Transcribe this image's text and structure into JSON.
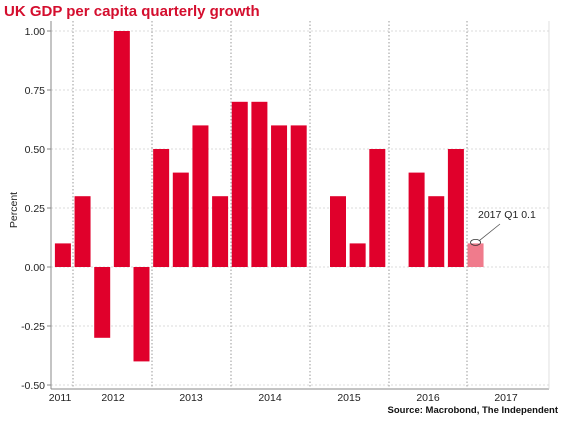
{
  "chart_data": {
    "type": "bar",
    "title": "UK GDP per capita quarterly growth",
    "ylabel": "Percent",
    "xlabel": "",
    "source": "Source: Macrobond, The Independent",
    "ylim": [
      -0.5,
      1.0
    ],
    "yticks": [
      "1.00",
      "0.75",
      "0.50",
      "0.25",
      "0.00",
      "-0.25",
      "-0.50"
    ],
    "year_labels": [
      "2011",
      "2012",
      "2013",
      "2014",
      "2015",
      "2016",
      "2017"
    ],
    "categories": [
      "2011 Q4",
      "2012 Q1",
      "2012 Q2",
      "2012 Q3",
      "2012 Q4",
      "2013 Q1",
      "2013 Q2",
      "2013 Q3",
      "2013 Q4",
      "2014 Q1",
      "2014 Q2",
      "2014 Q3",
      "2014 Q4",
      "2015 Q1",
      "2015 Q2",
      "2015 Q3",
      "2015 Q4",
      "2016 Q1",
      "2016 Q2",
      "2016 Q3",
      "2016 Q4",
      "2017 Q1"
    ],
    "values": [
      0.1,
      0.3,
      -0.3,
      1.0,
      -0.4,
      0.5,
      0.4,
      0.6,
      0.3,
      0.7,
      0.7,
      0.6,
      0.6,
      0.0,
      0.3,
      0.1,
      0.5,
      0.0,
      0.4,
      0.3,
      0.5,
      0.1
    ],
    "grid": true,
    "colors": {
      "bar": "#e0002b",
      "highlight": "#f07b8c",
      "grid": "#cfcfcf",
      "title": "#d40e2e"
    },
    "annotation": {
      "text": "2017 Q1 0.1",
      "category": "2017 Q1"
    }
  }
}
